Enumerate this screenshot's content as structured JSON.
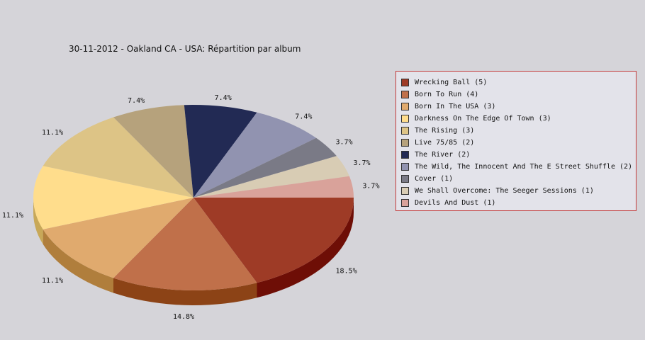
{
  "chart_data": {
    "type": "pie",
    "title": "30-11-2012 - Oakland CA - USA:  Répartition par album",
    "slices": [
      {
        "label": "Wrecking Ball (5)",
        "value": 5,
        "percent_label": "18.5%",
        "color": "#9e3b26",
        "side": "#6e0e06"
      },
      {
        "label": "Born To Run (4)",
        "value": 4,
        "percent_label": "14.8%",
        "color": "#c0704a",
        "side": "#8c4316"
      },
      {
        "label": "Born In The USA (3)",
        "value": 3,
        "percent_label": "11.1%",
        "color": "#e0aa6e",
        "side": "#b07e3c"
      },
      {
        "label": "Darkness On The Edge Of Town (3)",
        "value": 3,
        "percent_label": "11.1%",
        "color": "#ffdd8c",
        "side": "#c8a858"
      },
      {
        "label": "The Rising (3)",
        "value": 3,
        "percent_label": "11.1%",
        "color": "#ddc486",
        "side": "#a89050"
      },
      {
        "label": "Live 75/85 (2)",
        "value": 2,
        "percent_label": "7.4%",
        "color": "#b6a27c",
        "side": "#877450"
      },
      {
        "label": "The River (2)",
        "value": 2,
        "percent_label": "7.4%",
        "color": "#222a54",
        "side": "#101530"
      },
      {
        "label": "The Wild, The Innocent And The E Street Shuffle (2)",
        "value": 2,
        "percent_label": "7.4%",
        "color": "#9193b0",
        "side": "#666880"
      },
      {
        "label": "Cover (1)",
        "value": 1,
        "percent_label": "3.7%",
        "color": "#7a7a86",
        "side": "#55555e"
      },
      {
        "label": "We Shall Overcome: The Seeger Sessions (1)",
        "value": 1,
        "percent_label": "3.7%",
        "color": "#d8ccb4",
        "side": "#aa9e86"
      },
      {
        "label": "Devils And Dust (1)",
        "value": 1,
        "percent_label": "3.7%",
        "color": "#d9a29a",
        "side": "#aa746c"
      }
    ],
    "legend_position": "right"
  }
}
